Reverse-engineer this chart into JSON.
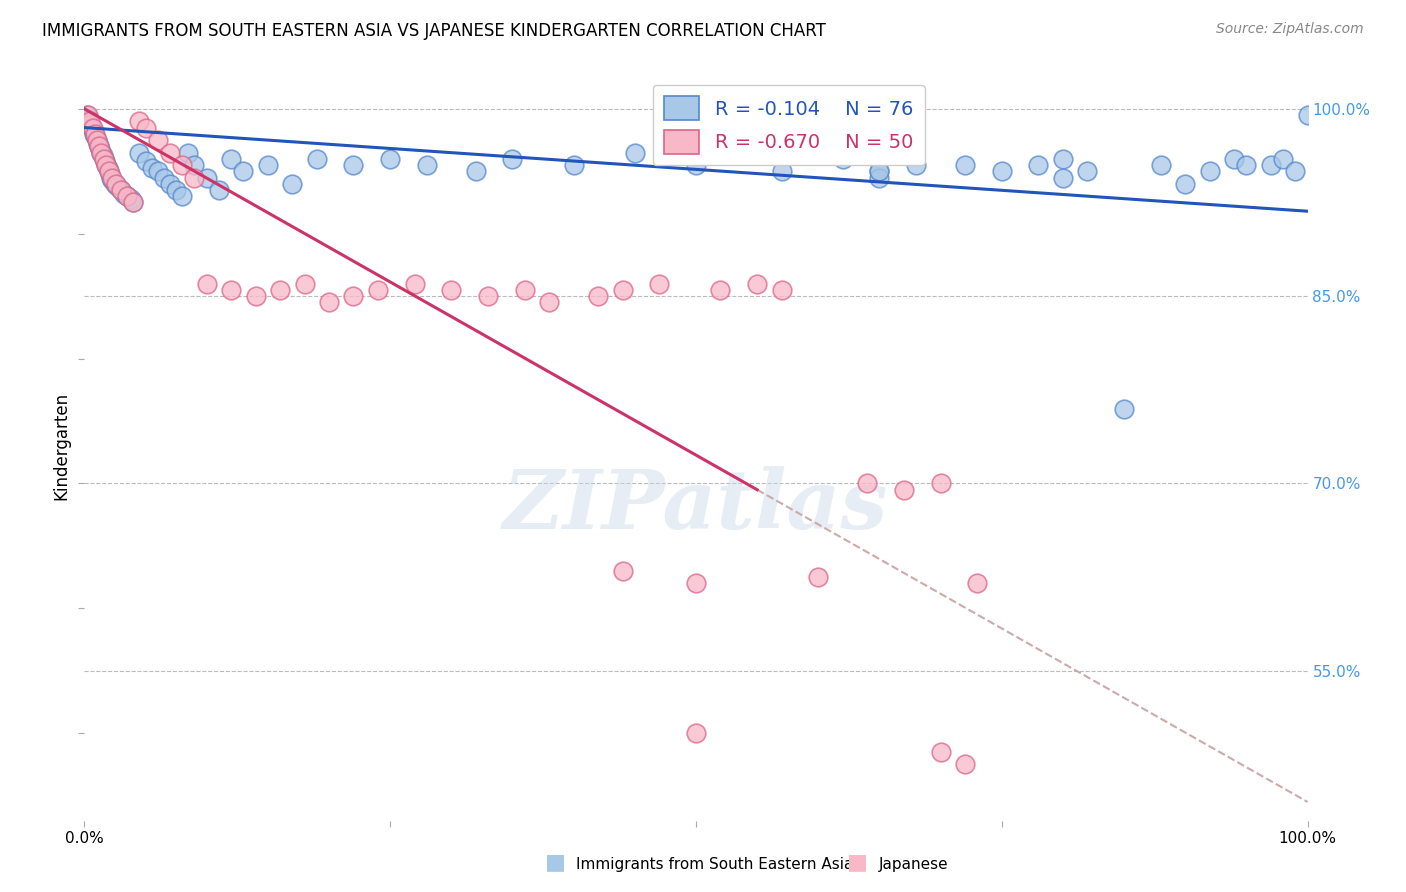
{
  "title": "IMMIGRANTS FROM SOUTH EASTERN ASIA VS JAPANESE KINDERGARTEN CORRELATION CHART",
  "source": "Source: ZipAtlas.com",
  "ylabel": "Kindergarten",
  "yticks": [
    100.0,
    85.0,
    70.0,
    55.0
  ],
  "ytick_labels": [
    "100.0%",
    "85.0%",
    "70.0%",
    "55.0%"
  ],
  "legend_blue_R": "-0.104",
  "legend_blue_N": "76",
  "legend_pink_R": "-0.670",
  "legend_pink_N": "50",
  "blue_fill_color": "#a8c8e8",
  "pink_fill_color": "#f8b8c8",
  "blue_edge_color": "#5588cc",
  "pink_edge_color": "#dd6688",
  "blue_line_color": "#2255bb",
  "pink_line_color": "#cc3366",
  "dash_color": "#ccaaaa",
  "watermark": "ZIPatlas",
  "xlim": [
    0,
    100
  ],
  "ylim": [
    43,
    103
  ],
  "blue_trend_x0": 0.0,
  "blue_trend_y0": 98.5,
  "blue_trend_x1": 100.0,
  "blue_trend_y1": 91.8,
  "pink_trend_x0": 0.0,
  "pink_trend_y0": 100.0,
  "pink_trend_x1": 55.0,
  "pink_trend_y1": 69.5,
  "pink_dash_x0": 55.0,
  "pink_dash_y0": 69.5,
  "pink_dash_x1": 100.0,
  "pink_dash_y1": 44.5,
  "blue_x": [
    0.2,
    0.3,
    0.4,
    0.5,
    0.6,
    0.7,
    0.8,
    0.9,
    1.0,
    1.1,
    1.2,
    1.3,
    1.4,
    1.5,
    1.6,
    1.7,
    1.8,
    1.9,
    2.0,
    2.1,
    2.2,
    2.3,
    2.5,
    2.7,
    3.0,
    3.2,
    3.5,
    3.8,
    4.0,
    4.5,
    5.0,
    5.5,
    6.0,
    6.5,
    7.0,
    7.5,
    8.0,
    8.5,
    9.0,
    10.0,
    11.0,
    12.0,
    13.0,
    15.0,
    17.0,
    19.0,
    22.0,
    25.0,
    28.0,
    32.0,
    35.0,
    40.0,
    45.0,
    50.0,
    57.0,
    62.0,
    65.0,
    68.0,
    72.0,
    75.0,
    78.0,
    80.0,
    85.0,
    88.0,
    90.0,
    92.0,
    94.0,
    95.0,
    97.0,
    98.0,
    99.0,
    100.0,
    65.0,
    65.0,
    80.0,
    82.0
  ],
  "blue_y": [
    99.5,
    99.2,
    99.0,
    98.8,
    98.5,
    98.3,
    98.0,
    97.8,
    97.5,
    97.2,
    97.0,
    96.8,
    96.5,
    96.3,
    96.0,
    95.8,
    95.5,
    95.3,
    95.0,
    94.8,
    94.5,
    94.3,
    94.0,
    93.8,
    93.5,
    93.2,
    93.0,
    92.8,
    92.5,
    96.5,
    95.8,
    95.3,
    95.0,
    94.5,
    94.0,
    93.5,
    93.0,
    96.5,
    95.5,
    94.5,
    93.5,
    96.0,
    95.0,
    95.5,
    94.0,
    96.0,
    95.5,
    96.0,
    95.5,
    95.0,
    96.0,
    95.5,
    96.5,
    95.5,
    95.0,
    96.0,
    95.0,
    95.5,
    95.5,
    95.0,
    95.5,
    96.0,
    76.0,
    95.5,
    94.0,
    95.0,
    96.0,
    95.5,
    95.5,
    96.0,
    95.0,
    99.5,
    94.5,
    95.0,
    94.5,
    95.0
  ],
  "pink_x": [
    0.3,
    0.5,
    0.7,
    0.9,
    1.0,
    1.2,
    1.4,
    1.6,
    1.8,
    2.0,
    2.3,
    2.6,
    3.0,
    3.5,
    4.0,
    4.5,
    5.0,
    6.0,
    7.0,
    8.0,
    9.0,
    10.0,
    12.0,
    14.0,
    16.0,
    18.0,
    20.0,
    22.0,
    24.0,
    27.0,
    30.0,
    33.0,
    36.0,
    38.0,
    42.0,
    47.0,
    50.0,
    52.0,
    55.0,
    57.0,
    60.0,
    64.0,
    67.0,
    70.0,
    73.0,
    44.0,
    44.0,
    50.0,
    70.0,
    72.0
  ],
  "pink_y": [
    99.5,
    99.0,
    98.5,
    98.0,
    97.5,
    97.0,
    96.5,
    96.0,
    95.5,
    95.0,
    94.5,
    94.0,
    93.5,
    93.0,
    92.5,
    99.0,
    98.5,
    97.5,
    96.5,
    95.5,
    94.5,
    86.0,
    85.5,
    85.0,
    85.5,
    86.0,
    84.5,
    85.0,
    85.5,
    86.0,
    85.5,
    85.0,
    85.5,
    84.5,
    85.0,
    86.0,
    62.0,
    85.5,
    86.0,
    85.5,
    62.5,
    70.0,
    69.5,
    70.0,
    62.0,
    63.0,
    85.5,
    50.0,
    48.5,
    47.5
  ]
}
